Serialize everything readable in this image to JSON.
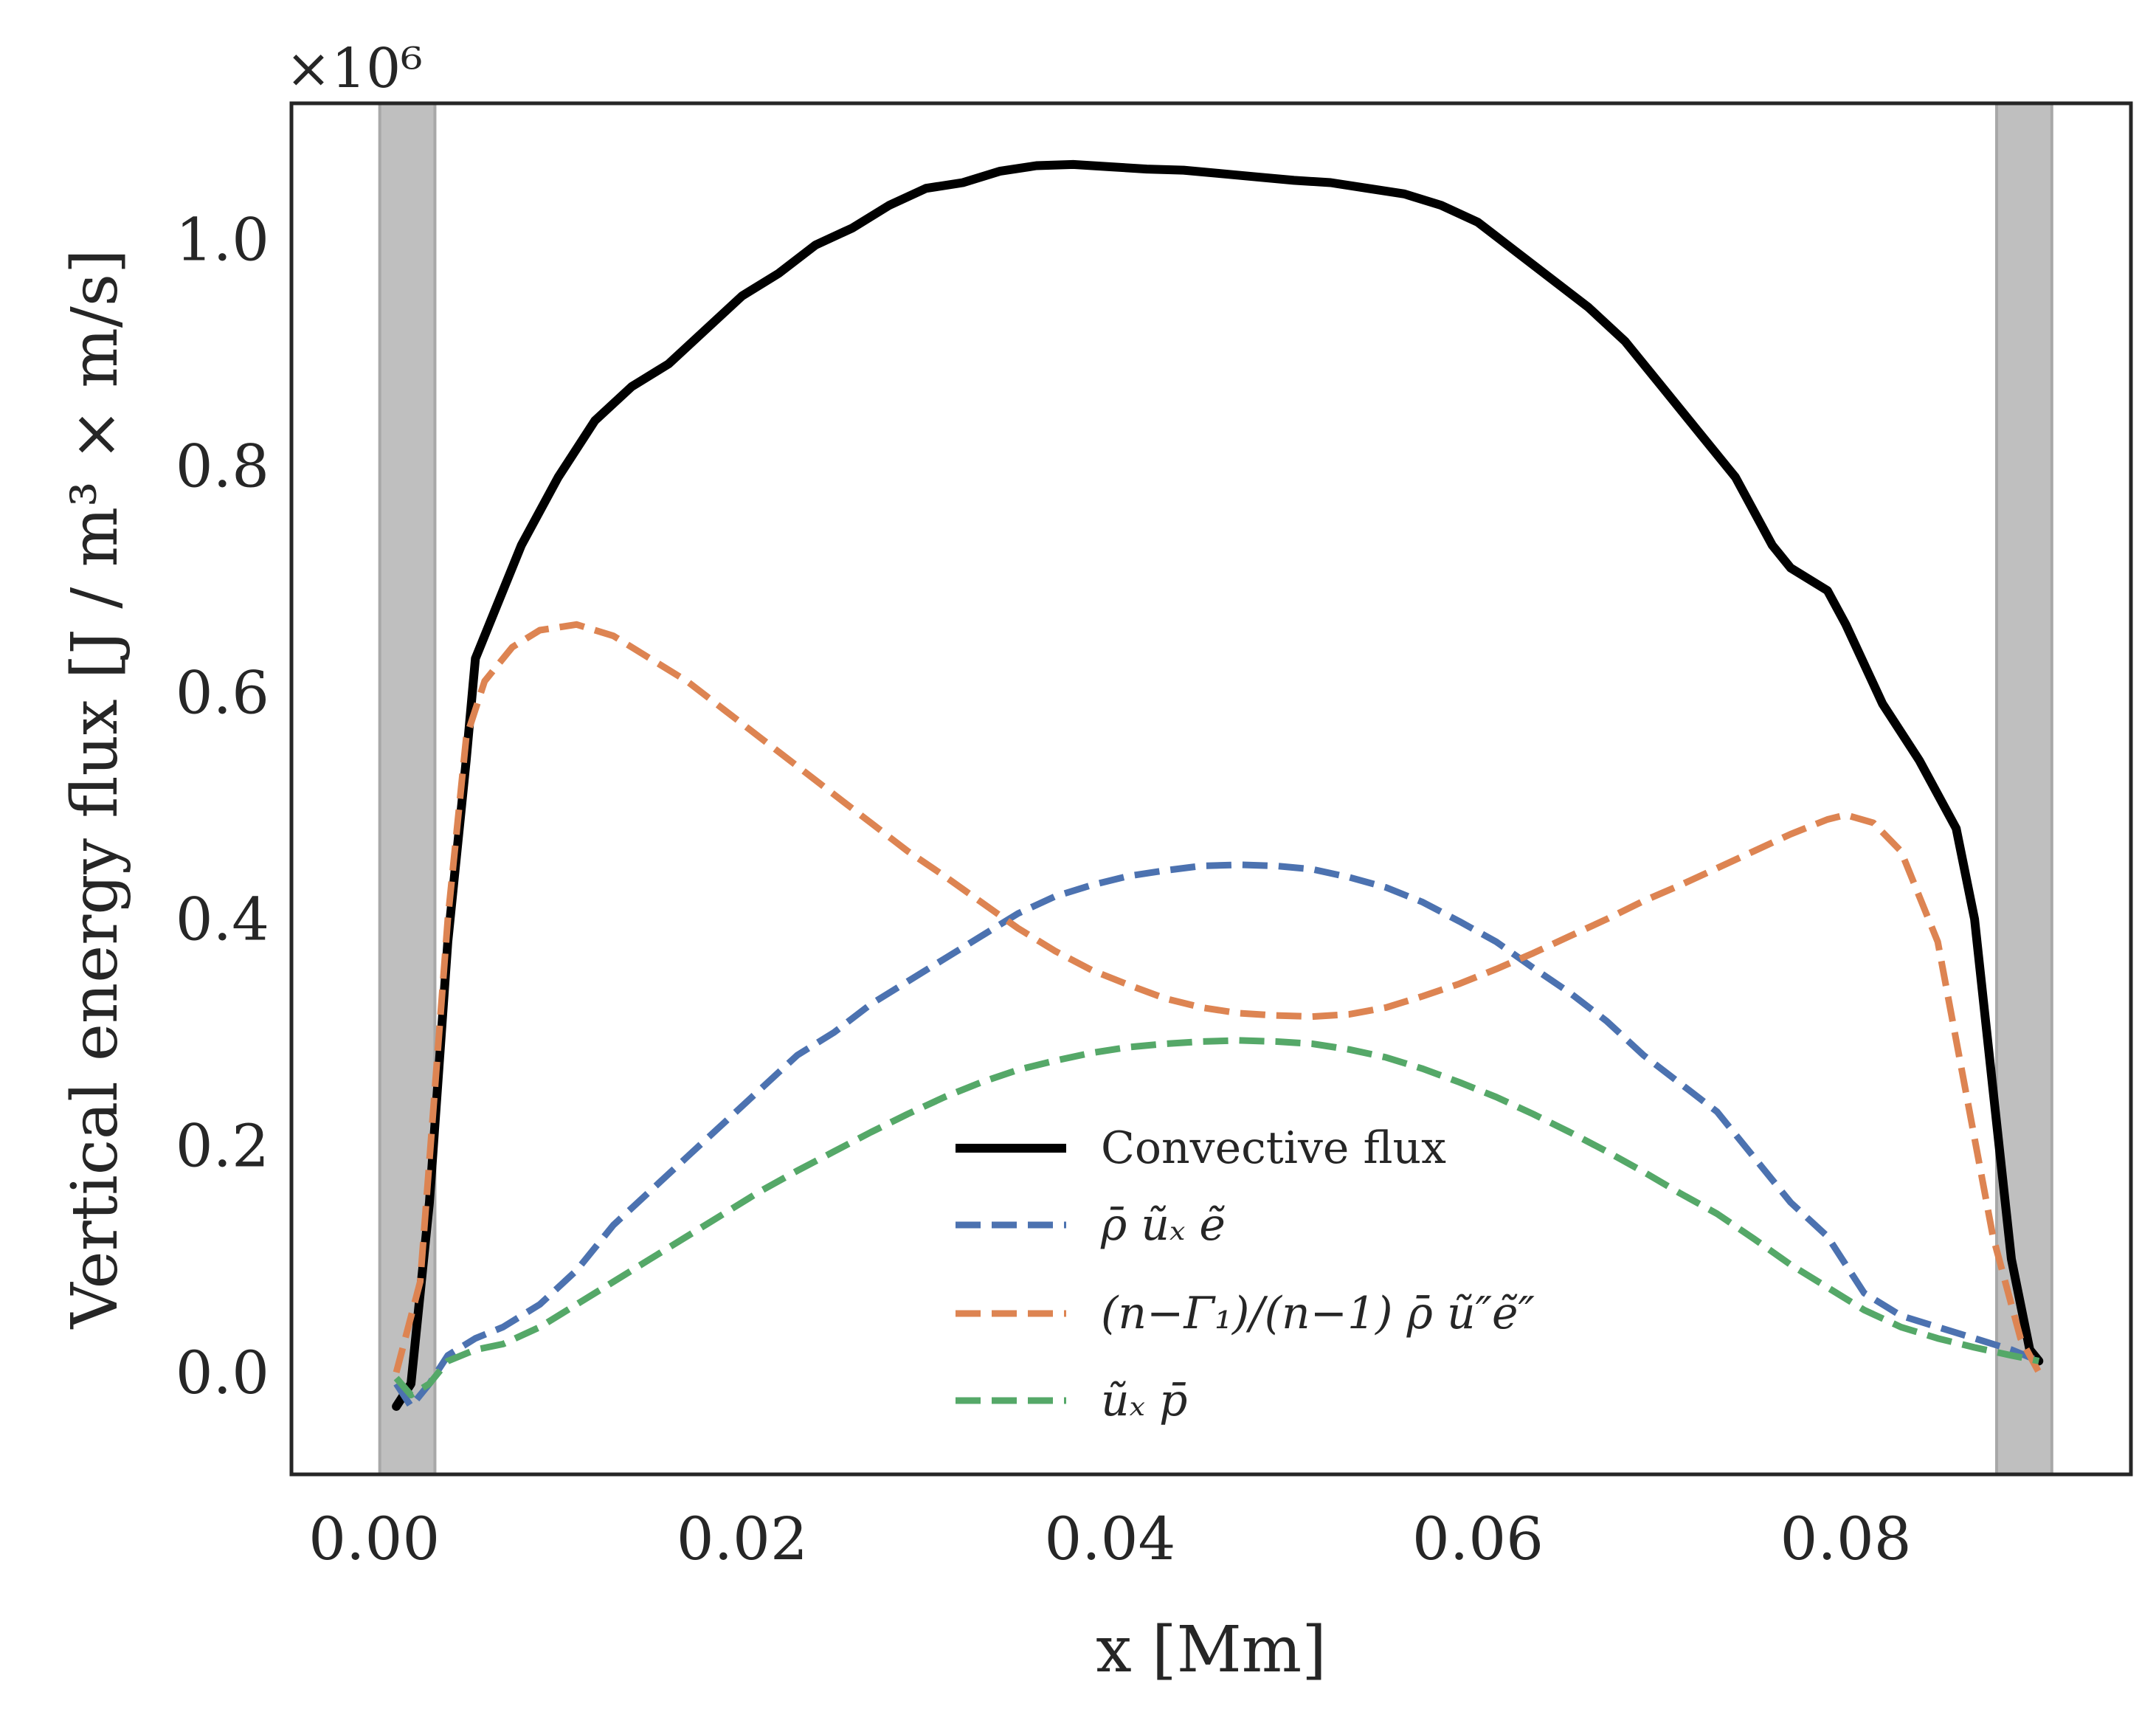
{
  "chart_data": {
    "type": "line",
    "title": "",
    "xlabel": "x [Mm]",
    "ylabel": "Vertical energy flux [J / m³ × m/s]",
    "y_multiplier": "×10⁶",
    "xlim": [
      -0.0045,
      0.0955
    ],
    "ylim": [
      -0.09,
      1.12
    ],
    "x_ticks": [
      0.0,
      0.02,
      0.04,
      0.06,
      0.08
    ],
    "x_tick_labels": [
      "0.00",
      "0.02",
      "0.04",
      "0.06",
      "0.08"
    ],
    "y_ticks": [
      0.0,
      0.2,
      0.4,
      0.6,
      0.8,
      1.0
    ],
    "y_tick_labels": [
      "0.0",
      "0.2",
      "0.4",
      "0.6",
      "0.8",
      "1.0"
    ],
    "grid": false,
    "legend_position": "lower-center",
    "shaded_bands": [
      {
        "x0": 0.0003,
        "x1": 0.0033,
        "color": "#bfbfbf"
      },
      {
        "x0": 0.0882,
        "x1": 0.0912,
        "color": "#bfbfbf"
      }
    ],
    "series": [
      {
        "name": "Convective flux",
        "color": "#000000",
        "style": "solid",
        "points": [
          [
            0.0012,
            -0.03
          ],
          [
            0.002,
            -0.01
          ],
          [
            0.003,
            0.15
          ],
          [
            0.004,
            0.38
          ],
          [
            0.005,
            0.54
          ],
          [
            0.0055,
            0.63
          ],
          [
            0.0065,
            0.67
          ],
          [
            0.008,
            0.73
          ],
          [
            0.01,
            0.79
          ],
          [
            0.012,
            0.84
          ],
          [
            0.014,
            0.87
          ],
          [
            0.016,
            0.89
          ],
          [
            0.018,
            0.92
          ],
          [
            0.02,
            0.95
          ],
          [
            0.022,
            0.97
          ],
          [
            0.024,
            0.995
          ],
          [
            0.026,
            1.01
          ],
          [
            0.028,
            1.03
          ],
          [
            0.03,
            1.045
          ],
          [
            0.032,
            1.05
          ],
          [
            0.034,
            1.06
          ],
          [
            0.036,
            1.065
          ],
          [
            0.038,
            1.066
          ],
          [
            0.04,
            1.064
          ],
          [
            0.042,
            1.062
          ],
          [
            0.044,
            1.061
          ],
          [
            0.046,
            1.058
          ],
          [
            0.048,
            1.055
          ],
          [
            0.05,
            1.052
          ],
          [
            0.052,
            1.05
          ],
          [
            0.054,
            1.045
          ],
          [
            0.056,
            1.04
          ],
          [
            0.058,
            1.03
          ],
          [
            0.06,
            1.015
          ],
          [
            0.062,
            0.99
          ],
          [
            0.064,
            0.965
          ],
          [
            0.066,
            0.94
          ],
          [
            0.068,
            0.91
          ],
          [
            0.07,
            0.87
          ],
          [
            0.072,
            0.83
          ],
          [
            0.074,
            0.79
          ],
          [
            0.076,
            0.73
          ],
          [
            0.077,
            0.71
          ],
          [
            0.079,
            0.69
          ],
          [
            0.08,
            0.66
          ],
          [
            0.082,
            0.59
          ],
          [
            0.084,
            0.54
          ],
          [
            0.086,
            0.48
          ],
          [
            0.087,
            0.4
          ],
          [
            0.088,
            0.25
          ],
          [
            0.089,
            0.1
          ],
          [
            0.09,
            0.02
          ],
          [
            0.0905,
            0.01
          ]
        ]
      },
      {
        "name": "ρ̄ ũₓ ẽ",
        "color": "#4c72b0",
        "style": "dashed",
        "points": [
          [
            0.0012,
            -0.01
          ],
          [
            0.002,
            -0.03
          ],
          [
            0.003,
            -0.01
          ],
          [
            0.004,
            0.015
          ],
          [
            0.0055,
            0.03
          ],
          [
            0.007,
            0.04
          ],
          [
            0.009,
            0.06
          ],
          [
            0.011,
            0.09
          ],
          [
            0.013,
            0.13
          ],
          [
            0.015,
            0.16
          ],
          [
            0.017,
            0.19
          ],
          [
            0.019,
            0.22
          ],
          [
            0.021,
            0.25
          ],
          [
            0.023,
            0.28
          ],
          [
            0.025,
            0.3
          ],
          [
            0.027,
            0.325
          ],
          [
            0.029,
            0.345
          ],
          [
            0.031,
            0.365
          ],
          [
            0.033,
            0.385
          ],
          [
            0.035,
            0.405
          ],
          [
            0.037,
            0.42
          ],
          [
            0.039,
            0.43
          ],
          [
            0.041,
            0.438
          ],
          [
            0.043,
            0.443
          ],
          [
            0.045,
            0.447
          ],
          [
            0.047,
            0.448
          ],
          [
            0.049,
            0.447
          ],
          [
            0.051,
            0.444
          ],
          [
            0.053,
            0.437
          ],
          [
            0.055,
            0.428
          ],
          [
            0.057,
            0.415
          ],
          [
            0.059,
            0.398
          ],
          [
            0.061,
            0.38
          ],
          [
            0.063,
            0.357
          ],
          [
            0.065,
            0.335
          ],
          [
            0.067,
            0.31
          ],
          [
            0.069,
            0.28
          ],
          [
            0.071,
            0.255
          ],
          [
            0.073,
            0.23
          ],
          [
            0.075,
            0.19
          ],
          [
            0.077,
            0.15
          ],
          [
            0.079,
            0.12
          ],
          [
            0.081,
            0.07
          ],
          [
            0.083,
            0.05
          ],
          [
            0.085,
            0.04
          ],
          [
            0.087,
            0.03
          ],
          [
            0.089,
            0.02
          ],
          [
            0.0905,
            0.01
          ]
        ]
      },
      {
        "name": "(n−Γ₁)/(n−1) ρ̄ ũ″ẽ″",
        "color": "#dd8452",
        "style": "dashed",
        "points": [
          [
            0.0012,
            0.0
          ],
          [
            0.0025,
            0.08
          ],
          [
            0.004,
            0.4
          ],
          [
            0.005,
            0.56
          ],
          [
            0.006,
            0.61
          ],
          [
            0.0075,
            0.64
          ],
          [
            0.009,
            0.655
          ],
          [
            0.011,
            0.66
          ],
          [
            0.013,
            0.65
          ],
          [
            0.015,
            0.63
          ],
          [
            0.017,
            0.61
          ],
          [
            0.019,
            0.585
          ],
          [
            0.021,
            0.56
          ],
          [
            0.023,
            0.535
          ],
          [
            0.025,
            0.51
          ],
          [
            0.027,
            0.485
          ],
          [
            0.029,
            0.46
          ],
          [
            0.031,
            0.438
          ],
          [
            0.033,
            0.415
          ],
          [
            0.035,
            0.392
          ],
          [
            0.037,
            0.372
          ],
          [
            0.039,
            0.355
          ],
          [
            0.041,
            0.342
          ],
          [
            0.043,
            0.33
          ],
          [
            0.045,
            0.322
          ],
          [
            0.047,
            0.317
          ],
          [
            0.049,
            0.315
          ],
          [
            0.051,
            0.314
          ],
          [
            0.053,
            0.316
          ],
          [
            0.055,
            0.322
          ],
          [
            0.057,
            0.332
          ],
          [
            0.059,
            0.343
          ],
          [
            0.061,
            0.356
          ],
          [
            0.063,
            0.37
          ],
          [
            0.065,
            0.385
          ],
          [
            0.067,
            0.4
          ],
          [
            0.069,
            0.416
          ],
          [
            0.071,
            0.43
          ],
          [
            0.073,
            0.445
          ],
          [
            0.075,
            0.46
          ],
          [
            0.077,
            0.475
          ],
          [
            0.079,
            0.488
          ],
          [
            0.08,
            0.492
          ],
          [
            0.0815,
            0.485
          ],
          [
            0.083,
            0.46
          ],
          [
            0.085,
            0.38
          ],
          [
            0.0865,
            0.25
          ],
          [
            0.088,
            0.12
          ],
          [
            0.0895,
            0.03
          ],
          [
            0.0905,
            0.0
          ]
        ]
      },
      {
        "name": "ũₓ p̄",
        "color": "#55a868",
        "style": "dashed",
        "points": [
          [
            0.0012,
            -0.005
          ],
          [
            0.002,
            -0.02
          ],
          [
            0.003,
            -0.01
          ],
          [
            0.004,
            0.01
          ],
          [
            0.0055,
            0.02
          ],
          [
            0.007,
            0.025
          ],
          [
            0.009,
            0.04
          ],
          [
            0.011,
            0.06
          ],
          [
            0.013,
            0.08
          ],
          [
            0.015,
            0.1
          ],
          [
            0.017,
            0.12
          ],
          [
            0.019,
            0.14
          ],
          [
            0.021,
            0.16
          ],
          [
            0.023,
            0.178
          ],
          [
            0.025,
            0.195
          ],
          [
            0.027,
            0.212
          ],
          [
            0.029,
            0.228
          ],
          [
            0.031,
            0.243
          ],
          [
            0.033,
            0.256
          ],
          [
            0.035,
            0.267
          ],
          [
            0.037,
            0.275
          ],
          [
            0.039,
            0.282
          ],
          [
            0.041,
            0.287
          ],
          [
            0.043,
            0.29
          ],
          [
            0.045,
            0.292
          ],
          [
            0.047,
            0.293
          ],
          [
            0.049,
            0.292
          ],
          [
            0.051,
            0.29
          ],
          [
            0.053,
            0.285
          ],
          [
            0.055,
            0.278
          ],
          [
            0.057,
            0.268
          ],
          [
            0.059,
            0.256
          ],
          [
            0.061,
            0.243
          ],
          [
            0.063,
            0.228
          ],
          [
            0.065,
            0.212
          ],
          [
            0.067,
            0.195
          ],
          [
            0.069,
            0.177
          ],
          [
            0.071,
            0.158
          ],
          [
            0.073,
            0.14
          ],
          [
            0.075,
            0.118
          ],
          [
            0.077,
            0.095
          ],
          [
            0.079,
            0.075
          ],
          [
            0.081,
            0.055
          ],
          [
            0.083,
            0.04
          ],
          [
            0.085,
            0.03
          ],
          [
            0.087,
            0.022
          ],
          [
            0.089,
            0.015
          ],
          [
            0.0905,
            0.01
          ]
        ]
      }
    ]
  }
}
